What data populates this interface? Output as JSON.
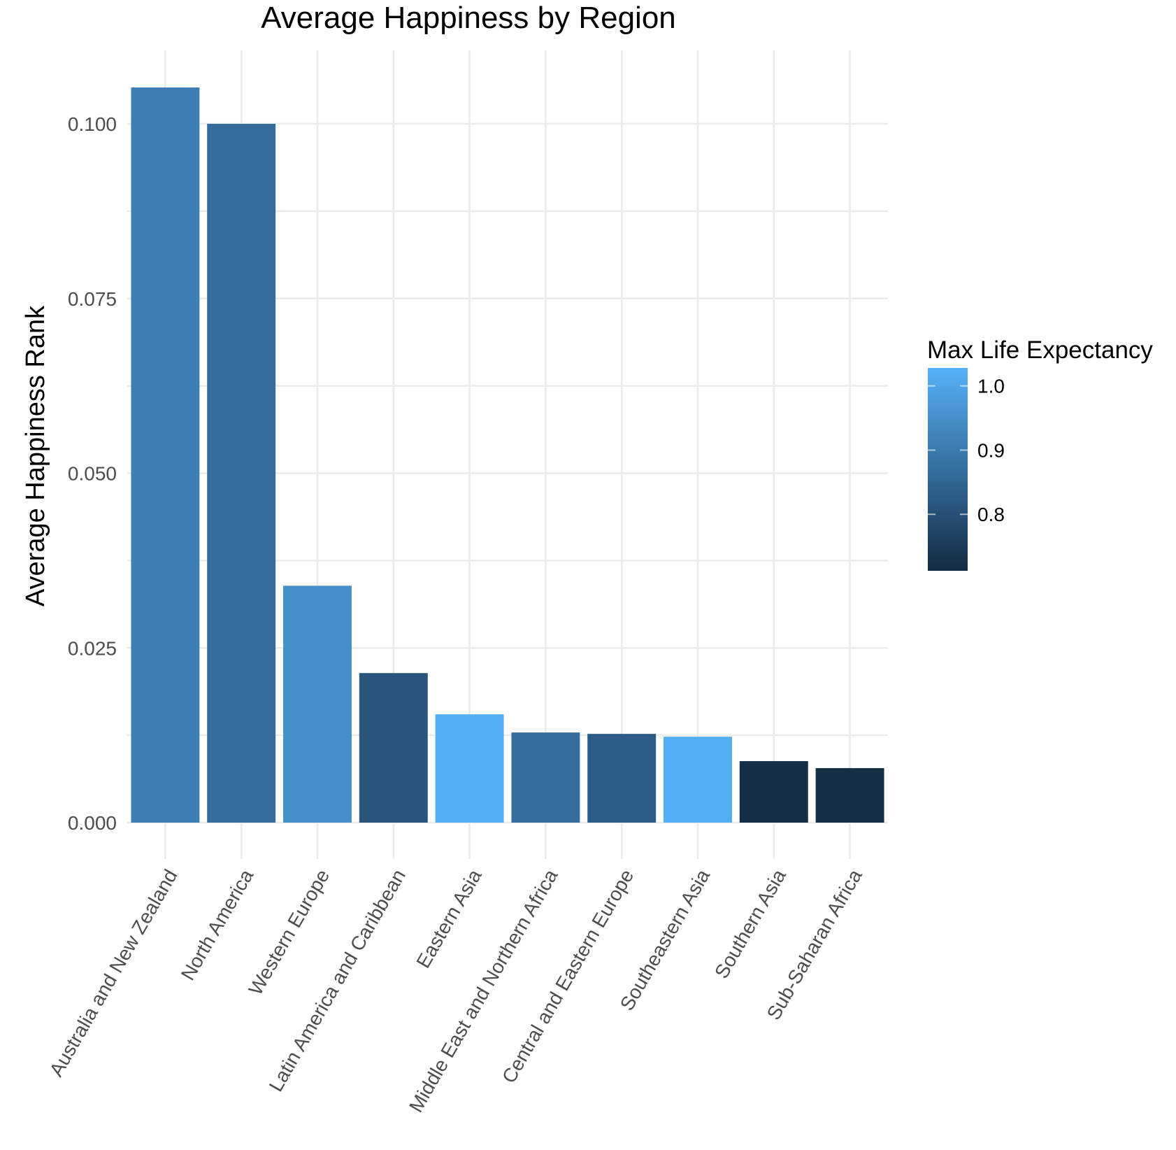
{
  "chart_data": {
    "type": "bar",
    "title": "Average Happiness by Region",
    "xlabel": "",
    "ylabel": "Average Happiness Rank",
    "categories": [
      "Australia and New Zealand",
      "North America",
      "Western Europe",
      "Latin America and Caribbean",
      "Eastern Asia",
      "Middle East and Northern Africa",
      "Central and Eastern Europe",
      "Southeastern Asia",
      "Southern Asia",
      "Sub-Saharan Africa"
    ],
    "values": [
      0.1052,
      0.1,
      0.0339,
      0.0214,
      0.0155,
      0.0129,
      0.0127,
      0.0123,
      0.0088,
      0.0078
    ],
    "color_values": [
      0.91,
      0.87,
      0.95,
      0.81,
      1.02,
      0.87,
      0.83,
      1.02,
      0.72,
      0.72
    ],
    "ylim": [
      0,
      0.1075
    ],
    "yticks": [
      "0.000",
      "0.025",
      "0.050",
      "0.075",
      "0.100"
    ],
    "grid": true,
    "legend": {
      "title": "Max Life Expectancy",
      "position": "right",
      "ticks": [
        "1.0",
        "0.9",
        "0.8"
      ],
      "range": [
        0.712,
        1.028
      ],
      "low_color": "#132B43",
      "high_color": "#56B1F7"
    }
  }
}
